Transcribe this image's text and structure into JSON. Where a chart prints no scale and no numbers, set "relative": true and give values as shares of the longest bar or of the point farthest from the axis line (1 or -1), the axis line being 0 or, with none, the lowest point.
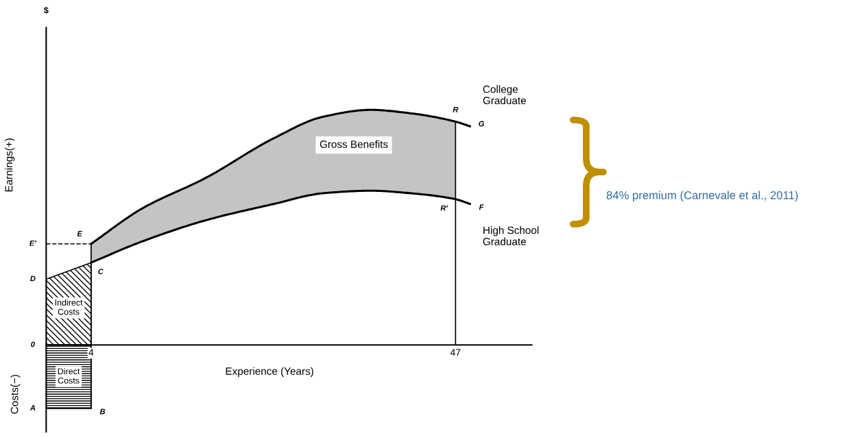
{
  "chart_data": {
    "type": "line",
    "relative": true,
    "xlabel": "Experience (Years)",
    "ylabel": "Earnings(+)",
    "xlim": [
      -1.3,
      56
    ],
    "xticks": [
      4,
      47
    ],
    "grid": false,
    "legend": false,
    "marker": "none",
    "series": [
      {
        "name": "Indirect Costs",
        "type": "area",
        "color": "#000000",
        "x": [
          -1.3,
          4
        ],
        "values": [
          0.28,
          0.35
        ]
      },
      {
        "name": "Direct Costs",
        "type": "area",
        "color": "#000000",
        "x": [
          -1.3,
          4
        ],
        "values": [
          -0.27,
          -0.27
        ]
      },
      {
        "name": "College Graduate",
        "color": "#000000",
        "x": [
          4,
          10,
          17.5,
          25.6,
          31.3,
          37,
          41.8,
          47,
          48.7
        ],
        "values": [
          0.43,
          0.58,
          0.71,
          0.88,
          0.97,
          1.0,
          0.985,
          0.95,
          0.93
        ]
      },
      {
        "name": "High School Graduate",
        "color": "#000000",
        "x": [
          4,
          10,
          17.5,
          25.6,
          31.3,
          37,
          41.8,
          47,
          48.7
        ],
        "values": [
          0.35,
          0.44,
          0.53,
          0.6,
          0.645,
          0.656,
          0.645,
          0.62,
          0.6
        ],
        "lower": [
          0.35,
          0.44,
          0.53,
          0.6,
          0.645,
          0.656,
          0.645,
          0.62,
          null
        ],
        "upper": [
          0.43,
          0.58,
          0.71,
          0.88,
          0.97,
          1.0,
          0.985,
          0.95,
          null
        ]
      },
      {
        "color": "#000000",
        "line_style": "dashed",
        "x": [
          -1.3,
          4
        ],
        "values": [
          0.43,
          0.43
        ]
      },
      {
        "color": "#000000",
        "x": [
          4,
          4
        ],
        "values": [
          -0.27,
          0.43
        ]
      },
      {
        "color": "#000000",
        "x": [
          47,
          47
        ],
        "values": [
          0,
          0.95
        ]
      }
    ],
    "annotations": [
      {
        "text": "R",
        "x": 47,
        "y": 0.95
      },
      {
        "text": "G",
        "x": 48.7,
        "y": 0.93
      },
      {
        "text": "R′",
        "x": 47,
        "y": 0.62
      },
      {
        "text": "F",
        "x": 48.7,
        "y": 0.6
      },
      {
        "text": "E",
        "x": 4,
        "y": 0.43
      },
      {
        "text": "C",
        "x": 4,
        "y": 0.35
      },
      {
        "text": "B",
        "x": 4,
        "y": -0.27
      },
      {
        "text": "E′",
        "x": -1.3,
        "y": 0.43
      },
      {
        "text": "D",
        "x": -1.3,
        "y": 0.28
      },
      {
        "text": "A",
        "x": -1.3,
        "y": -0.27
      },
      "$",
      "Costs(−)",
      "84% premium (Carnevale et al., 2011)",
      "Gross Benefits",
      "0"
    ]
  }
}
